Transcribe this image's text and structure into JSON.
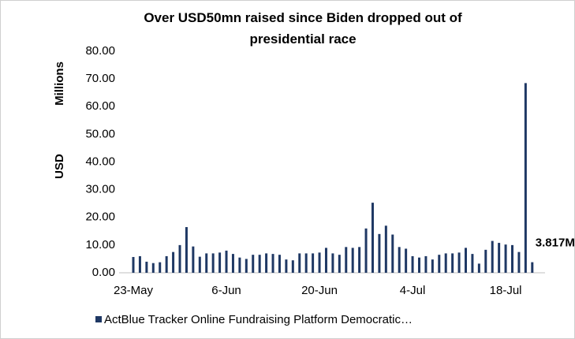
{
  "chart_data": {
    "type": "bar",
    "title": "Over USD50mn raised since Biden dropped out of presidential race",
    "y_label": "USD",
    "y_unit": "Millions",
    "categories": [
      "23-May",
      null,
      null,
      null,
      null,
      null,
      null,
      null,
      null,
      null,
      null,
      null,
      null,
      null,
      "6-Jun",
      null,
      null,
      null,
      null,
      null,
      null,
      null,
      null,
      null,
      null,
      null,
      null,
      null,
      "20-Jun",
      null,
      null,
      null,
      null,
      null,
      null,
      null,
      null,
      null,
      null,
      null,
      null,
      null,
      "4-Jul",
      null,
      null,
      null,
      null,
      null,
      null,
      null,
      null,
      null,
      null,
      null,
      null,
      null,
      "18-Jul",
      null,
      null,
      null,
      null
    ],
    "series": [
      {
        "name": "ActBlue Tracker Online Fundraising Platform Democratic…",
        "color": "#1f3864",
        "values": [
          5.7,
          6.0,
          4.0,
          3.5,
          3.8,
          6.0,
          7.5,
          10.0,
          16.5,
          9.5,
          5.8,
          7.0,
          7.0,
          7.3,
          8.0,
          6.8,
          5.5,
          5.0,
          6.5,
          6.5,
          7.0,
          6.8,
          6.5,
          4.8,
          4.5,
          7.0,
          7.0,
          7.0,
          7.3,
          9.0,
          7.0,
          6.5,
          9.3,
          9.0,
          9.3,
          16.0,
          25.3,
          14.0,
          17.0,
          13.8,
          9.3,
          8.7,
          6.0,
          5.5,
          6.0,
          4.8,
          6.5,
          7.0,
          7.0,
          7.3,
          9.0,
          6.8,
          3.3,
          8.3,
          11.5,
          10.8,
          10.2,
          10.0,
          7.5,
          68.5,
          3.817
        ],
        "value_labels": [
          null,
          null,
          null,
          null,
          null,
          null,
          null,
          null,
          null,
          null,
          null,
          null,
          null,
          null,
          null,
          null,
          null,
          null,
          null,
          null,
          null,
          null,
          null,
          null,
          null,
          null,
          null,
          null,
          null,
          null,
          null,
          null,
          null,
          null,
          null,
          null,
          null,
          null,
          null,
          null,
          null,
          null,
          null,
          null,
          null,
          null,
          null,
          null,
          null,
          null,
          null,
          null,
          null,
          null,
          null,
          null,
          null,
          null,
          null,
          null,
          "3.817M"
        ]
      }
    ],
    "ylim": [
      0,
      80
    ],
    "yticks": [
      {
        "value": 0,
        "label": "0.00"
      },
      {
        "value": 10,
        "label": "10.00"
      },
      {
        "value": 20,
        "label": "20.00"
      },
      {
        "value": 30,
        "label": "30.00"
      },
      {
        "value": 40,
        "label": "40.00"
      },
      {
        "value": 50,
        "label": "50.00"
      },
      {
        "value": 60,
        "label": "60.00"
      },
      {
        "value": 70,
        "label": "70.00"
      },
      {
        "value": 80,
        "label": "80.00"
      }
    ],
    "grid": false,
    "legend": "bottom"
  }
}
